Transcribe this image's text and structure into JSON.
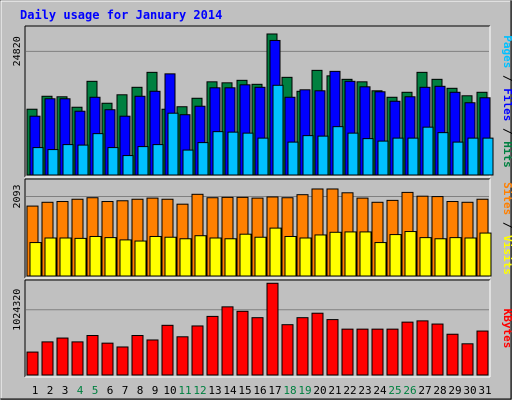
{
  "title": "Daily usage for January 2014",
  "colors": {
    "background": "#c0c0c0",
    "title": "#0000ff",
    "hits": "#008040",
    "files": "#0000ff",
    "pages": "#00c0ff",
    "visits": "#ffff00",
    "sites": "#ff8000",
    "kbytes": "#ff0000",
    "weekend_label": "#008040",
    "weekday_label": "#000000",
    "gridline": "#808080"
  },
  "chart_data": [
    {
      "type": "bar",
      "categories": [
        "1",
        "2",
        "3",
        "4",
        "5",
        "6",
        "7",
        "8",
        "9",
        "10",
        "11",
        "12",
        "13",
        "14",
        "15",
        "16",
        "17",
        "18",
        "19",
        "20",
        "21",
        "22",
        "23",
        "24",
        "25",
        "26",
        "27",
        "28",
        "29",
        "30",
        "31"
      ],
      "weekend_days": [
        "4",
        "5",
        "11",
        "12",
        "18",
        "19",
        "25",
        "26"
      ],
      "y_tick_label": "24820",
      "y_tick_value": 24820,
      "ylim": [
        0,
        29500
      ],
      "axis_label_parts": [
        "Pages",
        "Files",
        "Hits"
      ],
      "series": [
        {
          "name": "Hits",
          "color_key": "hits",
          "values": [
            13200,
            15800,
            15700,
            13600,
            18800,
            14400,
            16100,
            17600,
            20600,
            13200,
            13700,
            15400,
            18700,
            18500,
            19000,
            18200,
            28300,
            19600,
            16800,
            21000,
            19900,
            19200,
            18700,
            16900,
            15600,
            16600,
            20600,
            19200,
            17400,
            15900,
            16600
          ]
        },
        {
          "name": "Files",
          "color_key": "files",
          "values": [
            11800,
            15300,
            15300,
            12800,
            15600,
            13100,
            11800,
            15800,
            16800,
            20300,
            12100,
            13800,
            17500,
            17500,
            18100,
            17600,
            27000,
            15600,
            17100,
            16900,
            20800,
            18800,
            17700,
            16700,
            14800,
            15700,
            17600,
            17800,
            16600,
            14500,
            15500
          ]
        },
        {
          "name": "Pages",
          "color_key": "pages",
          "values": [
            5500,
            5100,
            6100,
            6000,
            8300,
            5500,
            3900,
            5700,
            6100,
            12400,
            5000,
            6500,
            8700,
            8600,
            8400,
            7400,
            18000,
            6600,
            7900,
            7800,
            9700,
            8400,
            7300,
            6800,
            7400,
            7400,
            9600,
            8500,
            6600,
            7400,
            7400
          ]
        }
      ]
    },
    {
      "type": "bar",
      "categories": [
        "1",
        "2",
        "3",
        "4",
        "5",
        "6",
        "7",
        "8",
        "9",
        "10",
        "11",
        "12",
        "13",
        "14",
        "15",
        "16",
        "17",
        "18",
        "19",
        "20",
        "21",
        "22",
        "23",
        "24",
        "25",
        "26",
        "27",
        "28",
        "29",
        "30",
        "31"
      ],
      "y_tick_label": "2093",
      "y_tick_value": 2093,
      "ylim": [
        0,
        2500
      ],
      "axis_label_parts": [
        "Sites",
        "Visits"
      ],
      "series": [
        {
          "name": "Sites",
          "color_key": "sites",
          "values": [
            1840,
            1940,
            1960,
            2020,
            2060,
            1960,
            1980,
            2020,
            2050,
            2020,
            1890,
            2150,
            2060,
            2070,
            2070,
            2050,
            2080,
            2060,
            2140,
            2290,
            2290,
            2190,
            2050,
            1940,
            1990,
            2200,
            2100,
            2090,
            1960,
            1940,
            2020
          ]
        },
        {
          "name": "Visits",
          "color_key": "visits",
          "values": [
            880,
            1000,
            1000,
            990,
            1040,
            1010,
            950,
            920,
            1040,
            1020,
            980,
            1060,
            1000,
            980,
            1100,
            1020,
            1260,
            1040,
            1000,
            1080,
            1150,
            1160,
            1160,
            880,
            1090,
            1170,
            1010,
            980,
            1010,
            1000,
            1130
          ]
        }
      ]
    },
    {
      "type": "bar",
      "categories": [
        "1",
        "2",
        "3",
        "4",
        "5",
        "6",
        "7",
        "8",
        "9",
        "10",
        "11",
        "12",
        "13",
        "14",
        "15",
        "16",
        "17",
        "18",
        "19",
        "20",
        "21",
        "22",
        "23",
        "24",
        "25",
        "26",
        "27",
        "28",
        "29",
        "30",
        "31"
      ],
      "y_tick_label": "1024320",
      "y_tick_value": 1024320,
      "ylim": [
        0,
        1460000
      ],
      "axis_label_parts": [
        "KBytes"
      ],
      "series": [
        {
          "name": "KBytes",
          "color_key": "kbytes",
          "values": [
            360000,
            520000,
            580000,
            520000,
            620000,
            500000,
            440000,
            620000,
            550000,
            780000,
            600000,
            770000,
            920000,
            1070000,
            1000000,
            900000,
            1440000,
            790000,
            900000,
            970000,
            870000,
            720000,
            720000,
            720000,
            720000,
            830000,
            850000,
            800000,
            640000,
            490000,
            690000
          ]
        }
      ]
    }
  ]
}
